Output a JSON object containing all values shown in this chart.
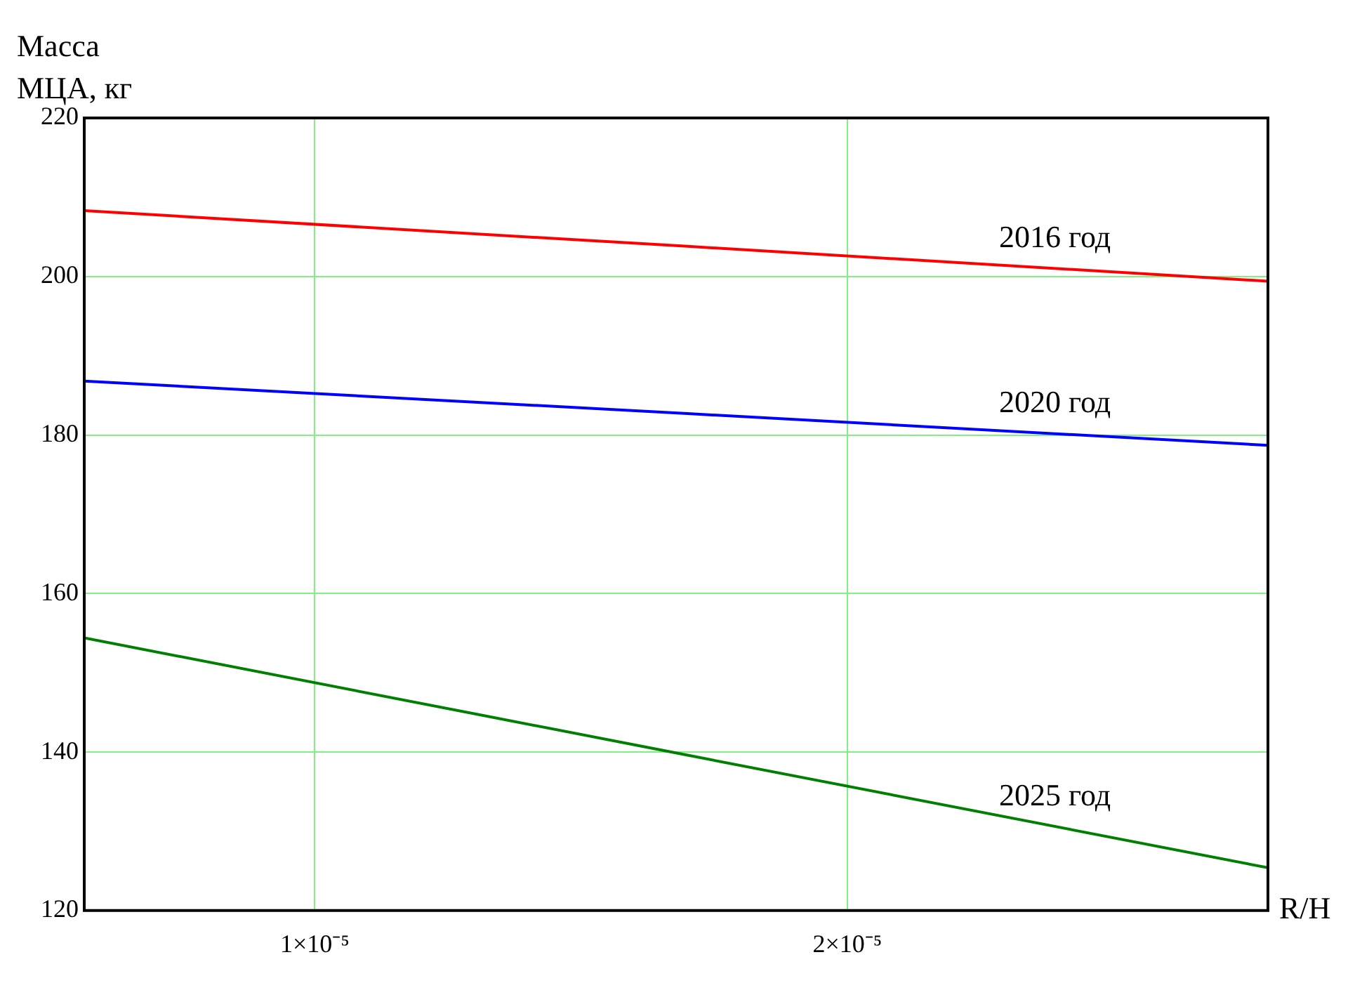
{
  "chart_data": {
    "type": "line",
    "xlabel": "R/H",
    "ylabel": "Масса МЦА, кг",
    "x": [
      5.67e-06,
      1.7e-05,
      2.79e-05
    ],
    "series": [
      {
        "name": "2016 год",
        "color": "#ff0000",
        "values": [
          208.3,
          203.8,
          199.4
        ]
      },
      {
        "name": "2020 год",
        "color": "#0000ff",
        "values": [
          186.8,
          182.7,
          178.7
        ]
      },
      {
        "name": "2025 год",
        "color": "#008000",
        "values": [
          154.4,
          139.6,
          125.4
        ]
      }
    ],
    "xlim": [
      5.67e-06,
      2.79e-05
    ],
    "xticks": [
      {
        "value": 1e-05,
        "label": "1×10⁻⁵"
      },
      {
        "value": 2e-05,
        "label": "2×10⁻⁵"
      }
    ],
    "ylim": [
      120,
      220
    ],
    "yticks": [
      120,
      140,
      160,
      180,
      200,
      220
    ],
    "grid": true,
    "legend": false,
    "marker": "none",
    "line_style": "solid"
  }
}
